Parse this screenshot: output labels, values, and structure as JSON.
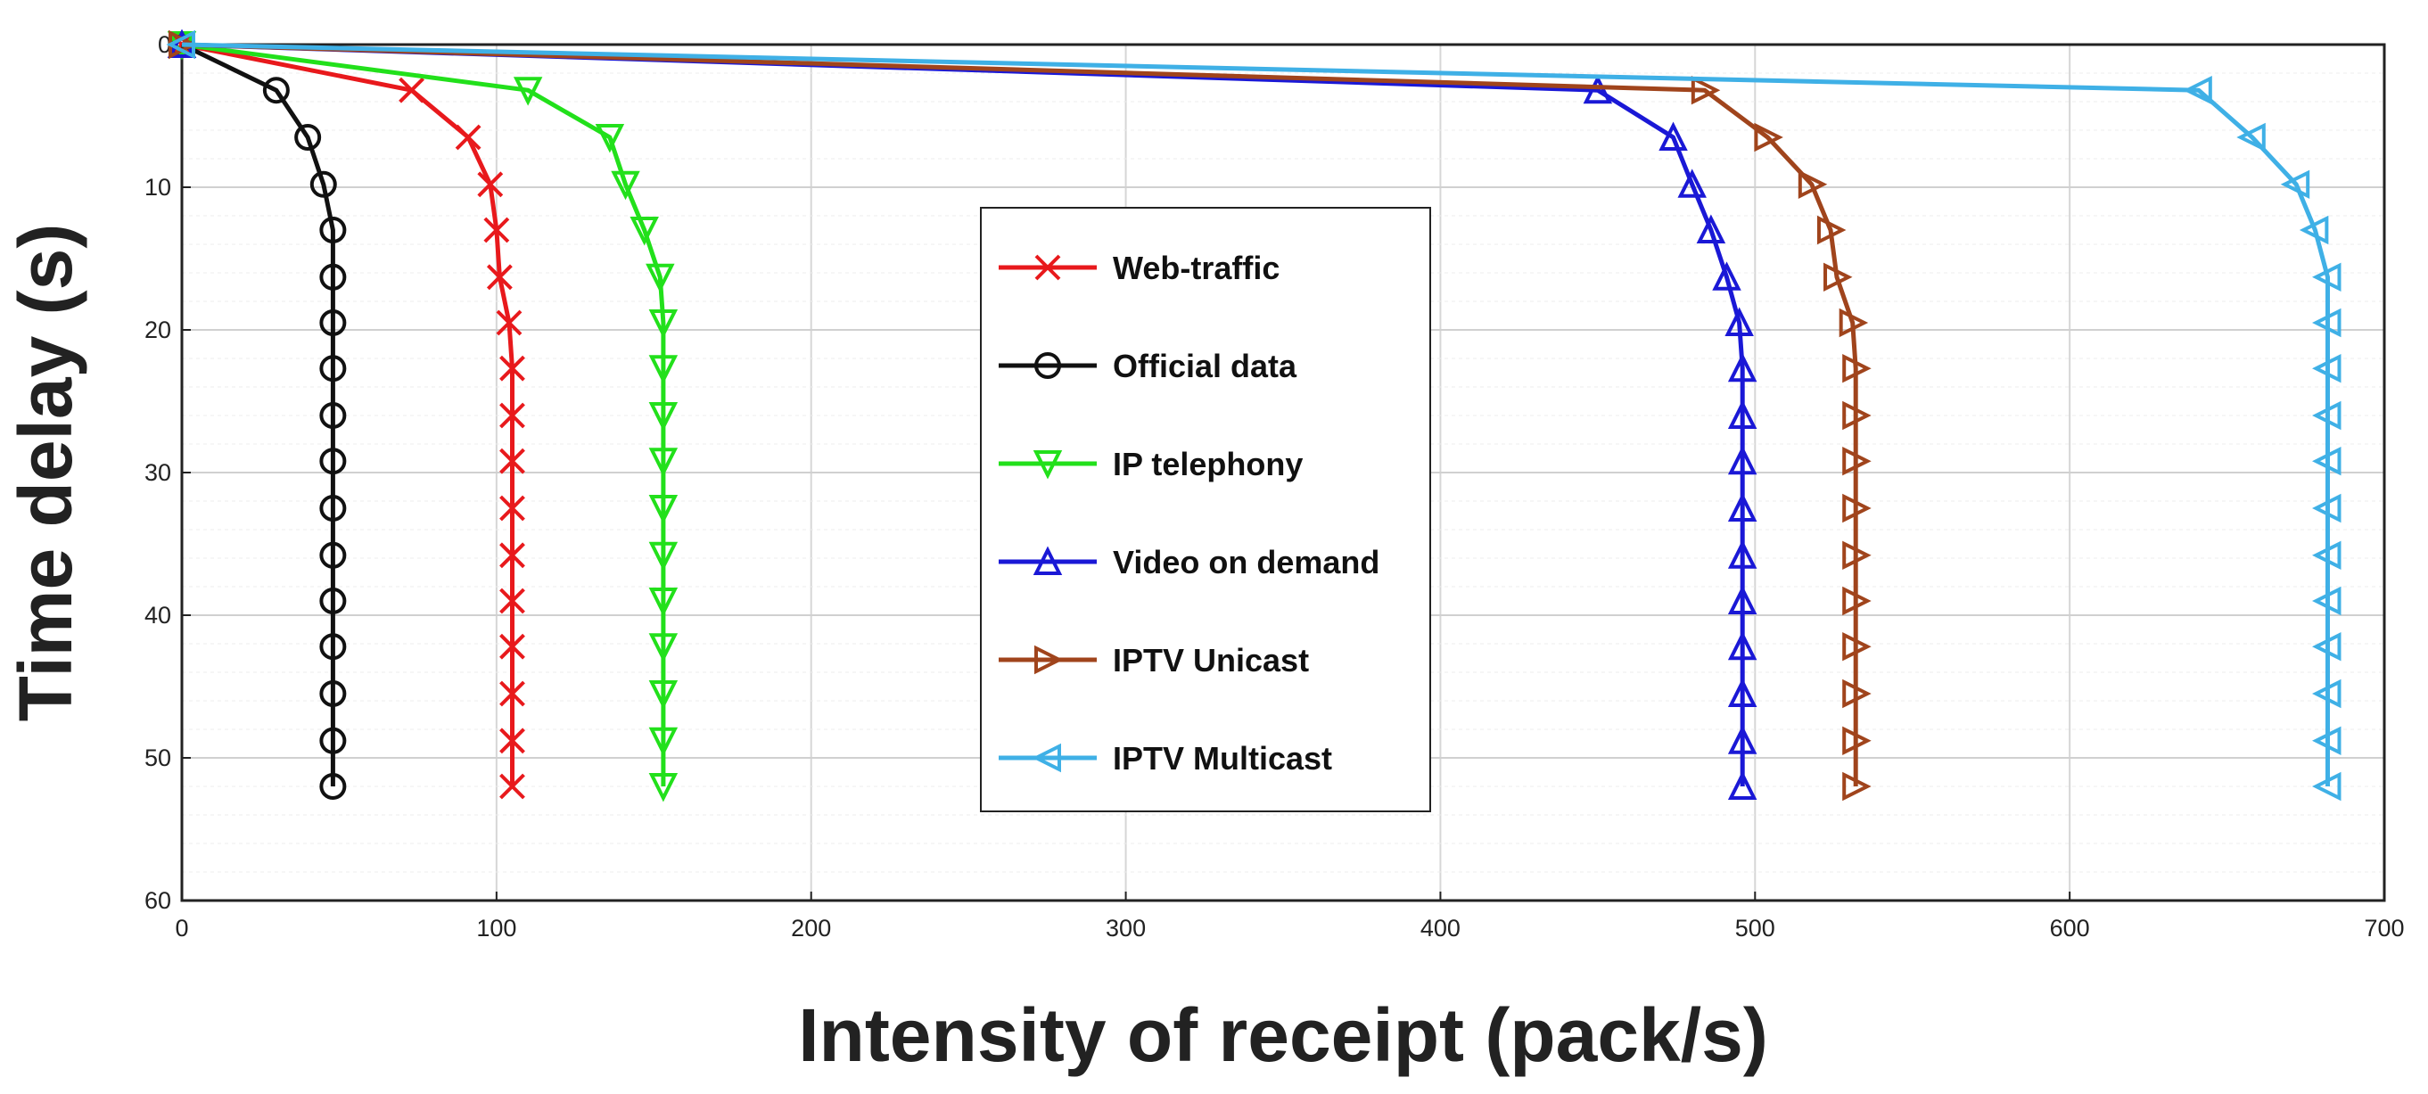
{
  "chart_data": {
    "type": "line",
    "xlabel": "Intensity of receipt  (pack/s)",
    "ylabel": "Time delay (s)",
    "xlim": [
      0,
      700
    ],
    "ylim": [
      0,
      60
    ],
    "y_axis_reversed": true,
    "grid": true,
    "legend_position": "center",
    "x_ticks": [
      "0",
      "100",
      "200",
      "300",
      "400",
      "500",
      "600",
      "700"
    ],
    "y_ticks": [
      "0",
      "10",
      "20",
      "30",
      "40",
      "50",
      "60"
    ],
    "series": [
      {
        "name": "Web-traffic",
        "color": "#e8191c",
        "marker": "x",
        "points": [
          [
            0,
            0
          ],
          [
            73,
            3.2
          ],
          [
            91,
            6.5
          ],
          [
            98,
            9.8
          ],
          [
            100,
            13
          ],
          [
            101,
            16.3
          ],
          [
            104,
            19.5
          ],
          [
            105,
            22.7
          ],
          [
            105,
            26
          ],
          [
            105,
            29.2
          ],
          [
            105,
            32.5
          ],
          [
            105,
            35.8
          ],
          [
            105,
            39
          ],
          [
            105,
            42.2
          ],
          [
            105,
            45.5
          ],
          [
            105,
            48.8
          ],
          [
            105,
            52
          ]
        ]
      },
      {
        "name": "Official data",
        "color": "#111111",
        "marker": "circle",
        "points": [
          [
            0,
            0
          ],
          [
            30,
            3.2
          ],
          [
            40,
            6.5
          ],
          [
            45,
            9.8
          ],
          [
            48,
            13
          ],
          [
            48,
            16.3
          ],
          [
            48,
            19.5
          ],
          [
            48,
            22.7
          ],
          [
            48,
            26
          ],
          [
            48,
            29.2
          ],
          [
            48,
            32.5
          ],
          [
            48,
            35.8
          ],
          [
            48,
            39
          ],
          [
            48,
            42.2
          ],
          [
            48,
            45.5
          ],
          [
            48,
            48.8
          ],
          [
            48,
            52
          ]
        ]
      },
      {
        "name": "IP telephony",
        "color": "#22e01b",
        "marker": "triangle-down",
        "points": [
          [
            0,
            0
          ],
          [
            110,
            3.2
          ],
          [
            136,
            6.5
          ],
          [
            141,
            9.8
          ],
          [
            147,
            13
          ],
          [
            152,
            16.3
          ],
          [
            153,
            19.5
          ],
          [
            153,
            22.7
          ],
          [
            153,
            26
          ],
          [
            153,
            29.2
          ],
          [
            153,
            32.5
          ],
          [
            153,
            35.8
          ],
          [
            153,
            39
          ],
          [
            153,
            42.2
          ],
          [
            153,
            45.5
          ],
          [
            153,
            48.8
          ],
          [
            153,
            52
          ]
        ]
      },
      {
        "name": "Video on demand",
        "color": "#1a18d6",
        "marker": "triangle-up",
        "points": [
          [
            0,
            0
          ],
          [
            450,
            3.2
          ],
          [
            474,
            6.5
          ],
          [
            480,
            9.8
          ],
          [
            486,
            13
          ],
          [
            491,
            16.3
          ],
          [
            495,
            19.5
          ],
          [
            496,
            22.7
          ],
          [
            496,
            26
          ],
          [
            496,
            29.2
          ],
          [
            496,
            32.5
          ],
          [
            496,
            35.8
          ],
          [
            496,
            39
          ],
          [
            496,
            42.2
          ],
          [
            496,
            45.5
          ],
          [
            496,
            48.8
          ],
          [
            496,
            52
          ]
        ]
      },
      {
        "name": "IPTV Unicast",
        "color": "#a0441c",
        "marker": "triangle-right",
        "points": [
          [
            0,
            0
          ],
          [
            484,
            3.2
          ],
          [
            504,
            6.5
          ],
          [
            518,
            9.8
          ],
          [
            524,
            13
          ],
          [
            526,
            16.3
          ],
          [
            531,
            19.5
          ],
          [
            532,
            22.7
          ],
          [
            532,
            26
          ],
          [
            532,
            29.2
          ],
          [
            532,
            32.5
          ],
          [
            532,
            35.8
          ],
          [
            532,
            39
          ],
          [
            532,
            42.2
          ],
          [
            532,
            45.5
          ],
          [
            532,
            48.8
          ],
          [
            532,
            52
          ]
        ]
      },
      {
        "name": "IPTV Multicast",
        "color": "#3fb0e6",
        "marker": "triangle-left",
        "points": [
          [
            0,
            0
          ],
          [
            641,
            3.2
          ],
          [
            658,
            6.5
          ],
          [
            672,
            9.8
          ],
          [
            678,
            13
          ],
          [
            682,
            16.3
          ],
          [
            682,
            19.5
          ],
          [
            682,
            22.7
          ],
          [
            682,
            26
          ],
          [
            682,
            29.2
          ],
          [
            682,
            32.5
          ],
          [
            682,
            35.8
          ],
          [
            682,
            39
          ],
          [
            682,
            42.2
          ],
          [
            682,
            45.5
          ],
          [
            682,
            48.8
          ],
          [
            682,
            52
          ]
        ]
      }
    ]
  }
}
